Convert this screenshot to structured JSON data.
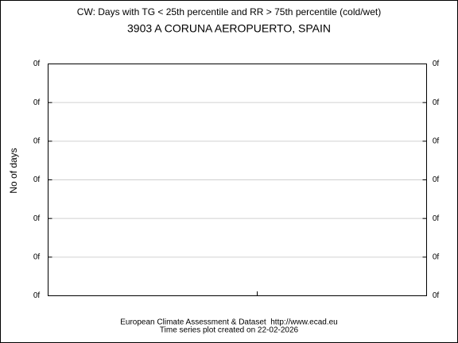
{
  "chart_data": {
    "type": "line",
    "title": "CW: Days with TG < 25th percentile and RR > 75th percentile (cold/wet)",
    "subtitle": "3903 A CORUNA AEROPUERTO, SPAIN",
    "y_label": "No of days",
    "footer": [
      "European Climate Assessment & Dataset  http://www.ecad.eu",
      "Time series plot created on 22-02-2026"
    ],
    "ylim": [
      0,
      6
    ],
    "yticks": [
      {
        "value": 0,
        "label": "0f"
      },
      {
        "value": 1,
        "label": "0f"
      },
      {
        "value": 2,
        "label": "0f"
      },
      {
        "value": 3,
        "label": "0f"
      },
      {
        "value": 4,
        "label": "0f"
      },
      {
        "value": 5,
        "label": "0f"
      },
      {
        "value": 6,
        "label": "0f"
      }
    ],
    "grid": true
  }
}
